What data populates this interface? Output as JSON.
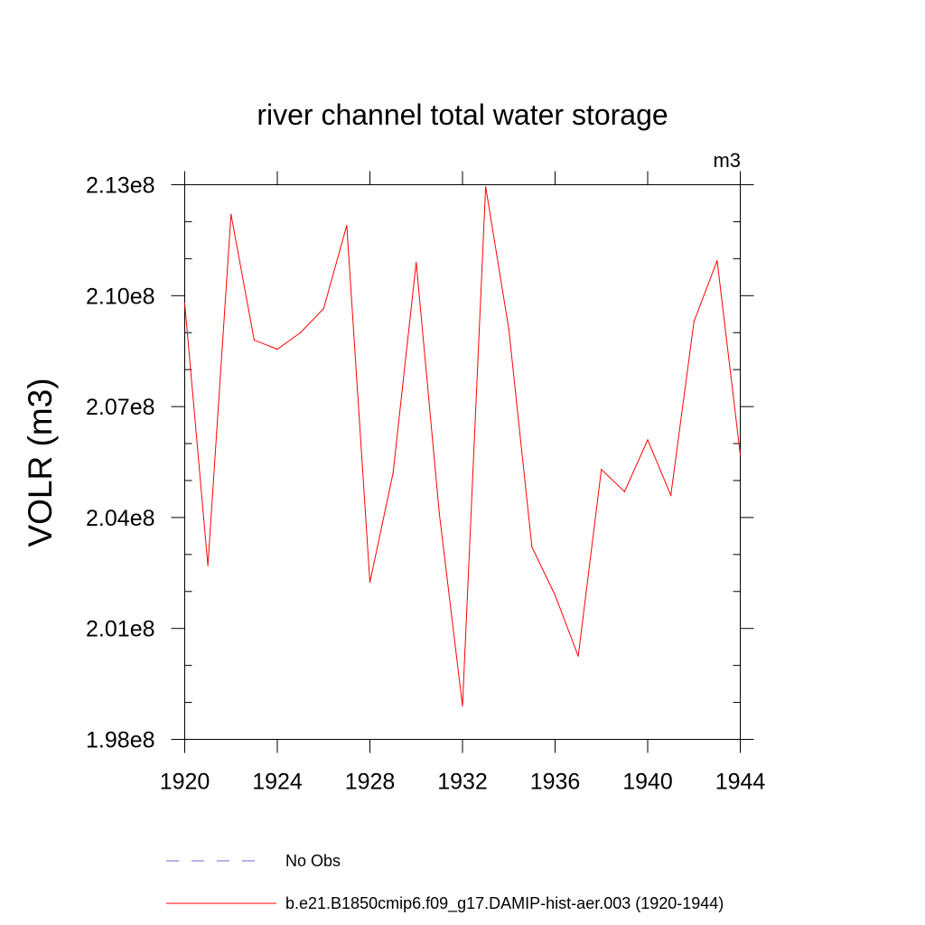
{
  "chart_data": {
    "type": "line",
    "title": "river channel total water storage",
    "units_label": "m3",
    "ylabel": "VOLR  (m3)",
    "xlabel": "",
    "xlim": [
      1920,
      1944
    ],
    "ylim": [
      198000000,
      213000000
    ],
    "x_ticks": [
      1920,
      1924,
      1928,
      1932,
      1936,
      1940,
      1944
    ],
    "x_tick_labels": [
      "1920",
      "1924",
      "1928",
      "1932",
      "1936",
      "1940",
      "1944"
    ],
    "y_ticks": [
      198000000,
      201000000,
      204000000,
      207000000,
      210000000,
      213000000
    ],
    "y_tick_labels": [
      "1.98e8",
      "2.01e8",
      "2.04e8",
      "2.07e8",
      "2.10e8",
      "2.13e8"
    ],
    "series": [
      {
        "name": "b.e21.B1850cmip6.f09_g17.DAMIP-hist-aer.003 (1920-1944)",
        "color": "#ff0000",
        "style": "solid",
        "x": [
          1920,
          1921,
          1922,
          1923,
          1924,
          1925,
          1926,
          1927,
          1928,
          1929,
          1930,
          1931,
          1932,
          1933,
          1934,
          1935,
          1936,
          1937,
          1938,
          1939,
          1940,
          1941,
          1942,
          1943,
          1944
        ],
        "y": [
          209800000,
          202700000,
          212200000,
          208800000,
          208550000,
          209000000,
          209650000,
          211900000,
          202250000,
          205200000,
          210900000,
          204100000,
          198900000,
          212950000,
          209100000,
          203200000,
          201900000,
          200250000,
          205300000,
          204700000,
          206100000,
          204600000,
          209300000,
          210950000,
          205700000
        ]
      }
    ],
    "legend": [
      {
        "label": "No Obs",
        "color": "#6a6acd",
        "style": "dashed"
      },
      {
        "label": "b.e21.B1850cmip6.f09_g17.DAMIP-hist-aer.003 (1920-1944)",
        "color": "#ff0000",
        "style": "solid"
      }
    ],
    "legend_placement": "bottom",
    "grid": false
  }
}
